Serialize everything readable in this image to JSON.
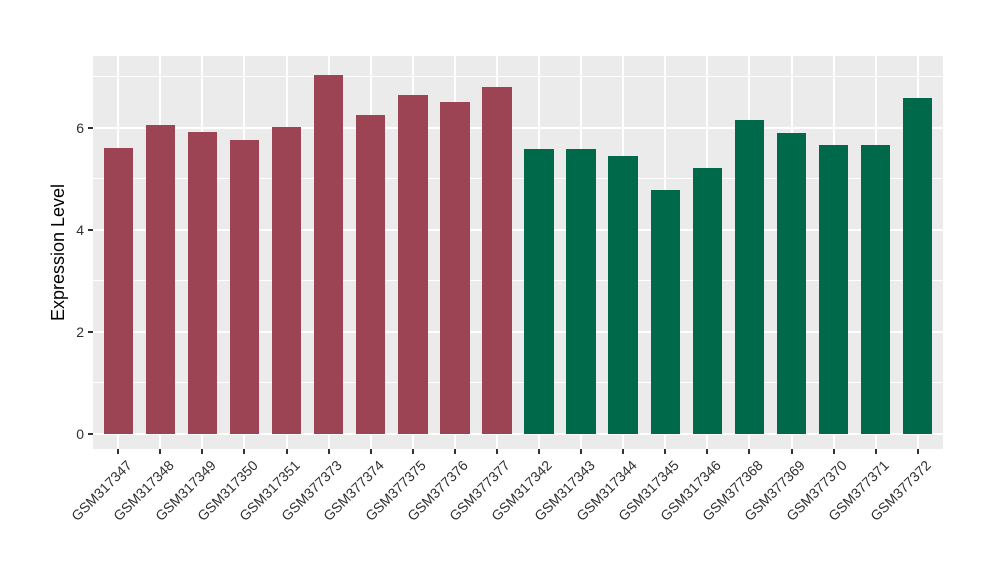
{
  "chart_data": {
    "type": "bar",
    "title": "",
    "xlabel": "",
    "ylabel": "Expression Level",
    "categories": [
      "GSM317347",
      "GSM317348",
      "GSM317349",
      "GSM317350",
      "GSM317351",
      "GSM377373",
      "GSM377374",
      "GSM377375",
      "GSM377376",
      "GSM377377",
      "GSM317342",
      "GSM317343",
      "GSM317344",
      "GSM317345",
      "GSM317346",
      "GSM377368",
      "GSM377369",
      "GSM377370",
      "GSM377371",
      "GSM377372"
    ],
    "values": [
      5.59,
      6.05,
      5.91,
      5.75,
      6.01,
      7.03,
      6.25,
      6.64,
      6.51,
      6.79,
      5.58,
      5.58,
      5.45,
      4.77,
      5.21,
      6.15,
      5.89,
      5.65,
      5.65,
      6.58
    ],
    "bar_colors": [
      "#9C4453",
      "#9C4453",
      "#9C4453",
      "#9C4453",
      "#9C4453",
      "#9C4453",
      "#9C4453",
      "#9C4453",
      "#9C4453",
      "#9C4453",
      "#00694A",
      "#00694A",
      "#00694A",
      "#00694A",
      "#00694A",
      "#00694A",
      "#00694A",
      "#00694A",
      "#00694A",
      "#00694A"
    ],
    "groups": [
      {
        "name": "left-group",
        "color": "#9C4453",
        "first_index": 0,
        "last_index": 9
      },
      {
        "name": "right-group",
        "color": "#00694A",
        "first_index": 10,
        "last_index": 19
      }
    ],
    "ylim": [
      0,
      7.4
    ],
    "yticks_major": [
      0,
      2,
      4,
      6
    ],
    "yticks_minor": [
      1,
      3,
      5,
      7
    ],
    "legend_position": "none",
    "grid": "on",
    "panel_bg": "#EBEBEB",
    "grid_color": "#FFFFFF",
    "bar_width_ratio": 0.7
  }
}
